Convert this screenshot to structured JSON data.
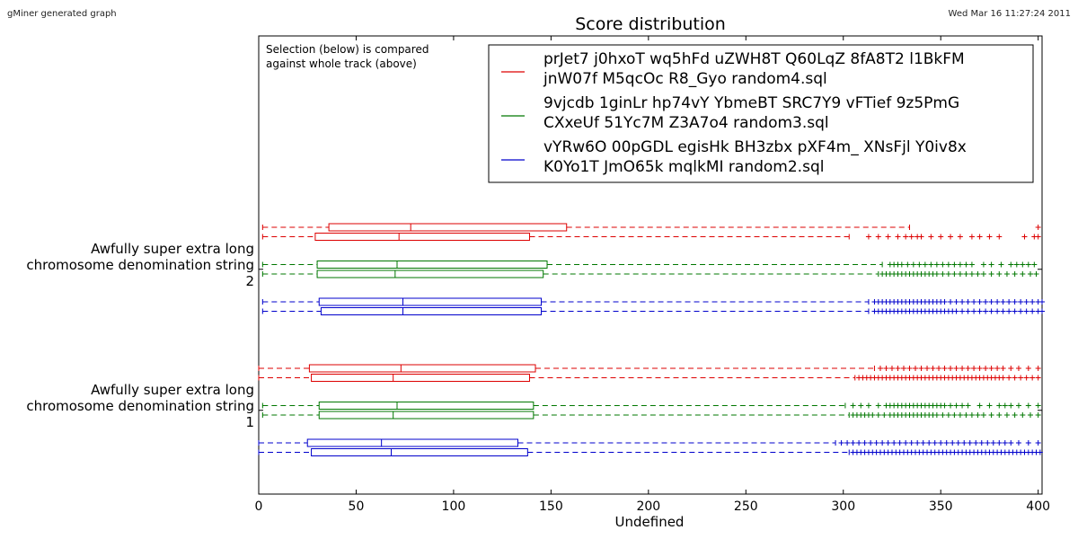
{
  "header": {
    "left_note": "gMiner generated graph",
    "right_note": "Wed Mar 16 11:27:24 2011"
  },
  "chart_data": {
    "type": "boxplot",
    "title": "Score distribution",
    "xlabel": "Undefined",
    "ylabel": "",
    "xlim": [
      0,
      402
    ],
    "xticks": [
      0,
      50,
      100,
      150,
      200,
      250,
      300,
      350,
      400
    ],
    "annotation": [
      "Selection (below) is compared",
      "against whole track (above)"
    ],
    "legend_placement": "top-right",
    "colors": {
      "red": "#dd0000",
      "green": "#007700",
      "blue": "#0000cc"
    },
    "legend": [
      {
        "color": "red",
        "lines": [
          "prJet7 j0hxoT wq5hFd uZWH8T Q60LqZ 8fA8T2 l1BkFM",
          "jnW07f M5qcOc R8_Gyo random4.sql"
        ]
      },
      {
        "color": "green",
        "lines": [
          "9vjcdb 1ginLr hp74vY YbmeBT SRC7Y9 vFTief 9z5PmG",
          "CXxeUf 51Yc7M Z3A7o4 random3.sql"
        ]
      },
      {
        "color": "blue",
        "lines": [
          "vYRw6O 00pGDL egisHk BH3zbx pXF4m_ XNsFjl Y0iv8x",
          "K0Yo1T JmO65k mqlkMI random2.sql"
        ]
      }
    ],
    "groups": [
      {
        "label": [
          "Awfully super extra long",
          "chromosome denomination string",
          "2"
        ],
        "rows": [
          {
            "color": "red",
            "role": "whole",
            "whisker_low": 2,
            "q1": 36,
            "median": 78,
            "q3": 158,
            "whisker_high": 334,
            "outliers": [
              400
            ]
          },
          {
            "color": "red",
            "role": "selection",
            "whisker_low": 2,
            "q1": 29,
            "median": 72,
            "q3": 139,
            "whisker_high": 303,
            "outliers": [
              313,
              318,
              323,
              328,
              332,
              335,
              338,
              340,
              345,
              350,
              355,
              360,
              366,
              370,
              375,
              380,
              393,
              398,
              400
            ]
          },
          {
            "color": "green",
            "role": "whole",
            "whisker_low": 2,
            "q1": 30,
            "median": 71,
            "q3": 148,
            "whisker_high": 320,
            "outliers": [
              324,
              326,
              328,
              330,
              333,
              336,
              339,
              342,
              345,
              348,
              351,
              354,
              357,
              360,
              363,
              366,
              372,
              376,
              381,
              386,
              389,
              392,
              395,
              398
            ]
          },
          {
            "color": "green",
            "role": "selection",
            "whisker_low": 2,
            "q1": 30,
            "median": 70,
            "q3": 146,
            "whisker_high": 318,
            "outliers": [
              320,
              322,
              324,
              326,
              328,
              330,
              332,
              334,
              336,
              338,
              340,
              342,
              344,
              346,
              348,
              351,
              354,
              357,
              360,
              363,
              366,
              369,
              372,
              376,
              380,
              384,
              388,
              392,
              396,
              399
            ]
          },
          {
            "color": "blue",
            "role": "whole",
            "whisker_low": 2,
            "q1": 31,
            "median": 74,
            "q3": 145,
            "whisker_high": 313,
            "outliers": [
              316,
              318,
              320,
              322,
              324,
              326,
              328,
              330,
              332,
              334,
              336,
              338,
              340,
              342,
              344,
              346,
              348,
              350,
              352,
              355,
              358,
              361,
              364,
              367,
              370,
              373,
              376,
              379,
              382,
              385,
              388,
              391,
              394,
              397,
              400,
              402
            ]
          },
          {
            "color": "blue",
            "role": "selection",
            "whisker_low": 2,
            "q1": 32,
            "median": 74,
            "q3": 145,
            "whisker_high": 313,
            "outliers": [
              316,
              318,
              320,
              322,
              324,
              326,
              328,
              330,
              332,
              334,
              336,
              338,
              340,
              342,
              344,
              346,
              348,
              350,
              352,
              354,
              356,
              358,
              361,
              364,
              367,
              370,
              373,
              376,
              379,
              382,
              385,
              388,
              391,
              394,
              397,
              400,
              402
            ]
          }
        ]
      },
      {
        "label": [
          "Awfully super extra long",
          "chromosome denomination string",
          "1"
        ],
        "rows": [
          {
            "color": "red",
            "role": "whole",
            "whisker_low": 0,
            "q1": 26,
            "median": 73,
            "q3": 142,
            "whisker_high": 316,
            "outliers": [
              319,
              322,
              325,
              328,
              331,
              334,
              337,
              340,
              343,
              346,
              349,
              352,
              355,
              358,
              361,
              364,
              367,
              370,
              373,
              376,
              379,
              382,
              386,
              390,
              395,
              400
            ]
          },
          {
            "color": "red",
            "role": "selection",
            "whisker_low": 0,
            "q1": 27,
            "median": 69,
            "q3": 139,
            "whisker_high": 306,
            "outliers": [
              308,
              310,
              312,
              314,
              316,
              318,
              320,
              322,
              324,
              326,
              328,
              330,
              332,
              334,
              336,
              338,
              340,
              342,
              344,
              346,
              348,
              350,
              352,
              354,
              356,
              358,
              360,
              362,
              364,
              366,
              368,
              370,
              372,
              374,
              376,
              378,
              380,
              382,
              385,
              388,
              391,
              394,
              397,
              400
            ]
          },
          {
            "color": "green",
            "role": "whole",
            "whisker_low": 2,
            "q1": 31,
            "median": 71,
            "q3": 141,
            "whisker_high": 301,
            "outliers": [
              305,
              309,
              313,
              318,
              322,
              324,
              326,
              328,
              330,
              332,
              334,
              336,
              338,
              340,
              342,
              344,
              346,
              348,
              350,
              352,
              355,
              358,
              361,
              364,
              370,
              375,
              380,
              383,
              386,
              390,
              395,
              400
            ]
          },
          {
            "color": "green",
            "role": "selection",
            "whisker_low": 2,
            "q1": 31,
            "median": 69,
            "q3": 141,
            "whisker_high": 303,
            "outliers": [
              305,
              307,
              309,
              311,
              313,
              315,
              318,
              321,
              324,
              326,
              328,
              330,
              332,
              334,
              336,
              338,
              340,
              342,
              344,
              346,
              348,
              351,
              354,
              357,
              360,
              363,
              366,
              369,
              372,
              376,
              380,
              384,
              388,
              392,
              396,
              400
            ]
          },
          {
            "color": "blue",
            "role": "whole",
            "whisker_low": 0,
            "q1": 25,
            "median": 63,
            "q3": 133,
            "whisker_high": 296,
            "outliers": [
              299,
              302,
              305,
              308,
              311,
              314,
              317,
              320,
              323,
              326,
              329,
              332,
              335,
              338,
              341,
              344,
              347,
              350,
              353,
              356,
              359,
              362,
              365,
              368,
              371,
              374,
              377,
              380,
              383,
              386,
              390,
              395,
              400
            ]
          },
          {
            "color": "blue",
            "role": "selection",
            "whisker_low": 0,
            "q1": 27,
            "median": 68,
            "q3": 138,
            "whisker_high": 303,
            "outliers": [
              305,
              307,
              309,
              311,
              313,
              315,
              317,
              319,
              321,
              323,
              325,
              327,
              329,
              331,
              333,
              335,
              337,
              339,
              341,
              343,
              345,
              347,
              349,
              351,
              353,
              355,
              357,
              359,
              361,
              363,
              365,
              367,
              369,
              371,
              373,
              375,
              377,
              379,
              381,
              383,
              385,
              387,
              389,
              391,
              393,
              395,
              397,
              399,
              401
            ]
          }
        ]
      }
    ]
  }
}
